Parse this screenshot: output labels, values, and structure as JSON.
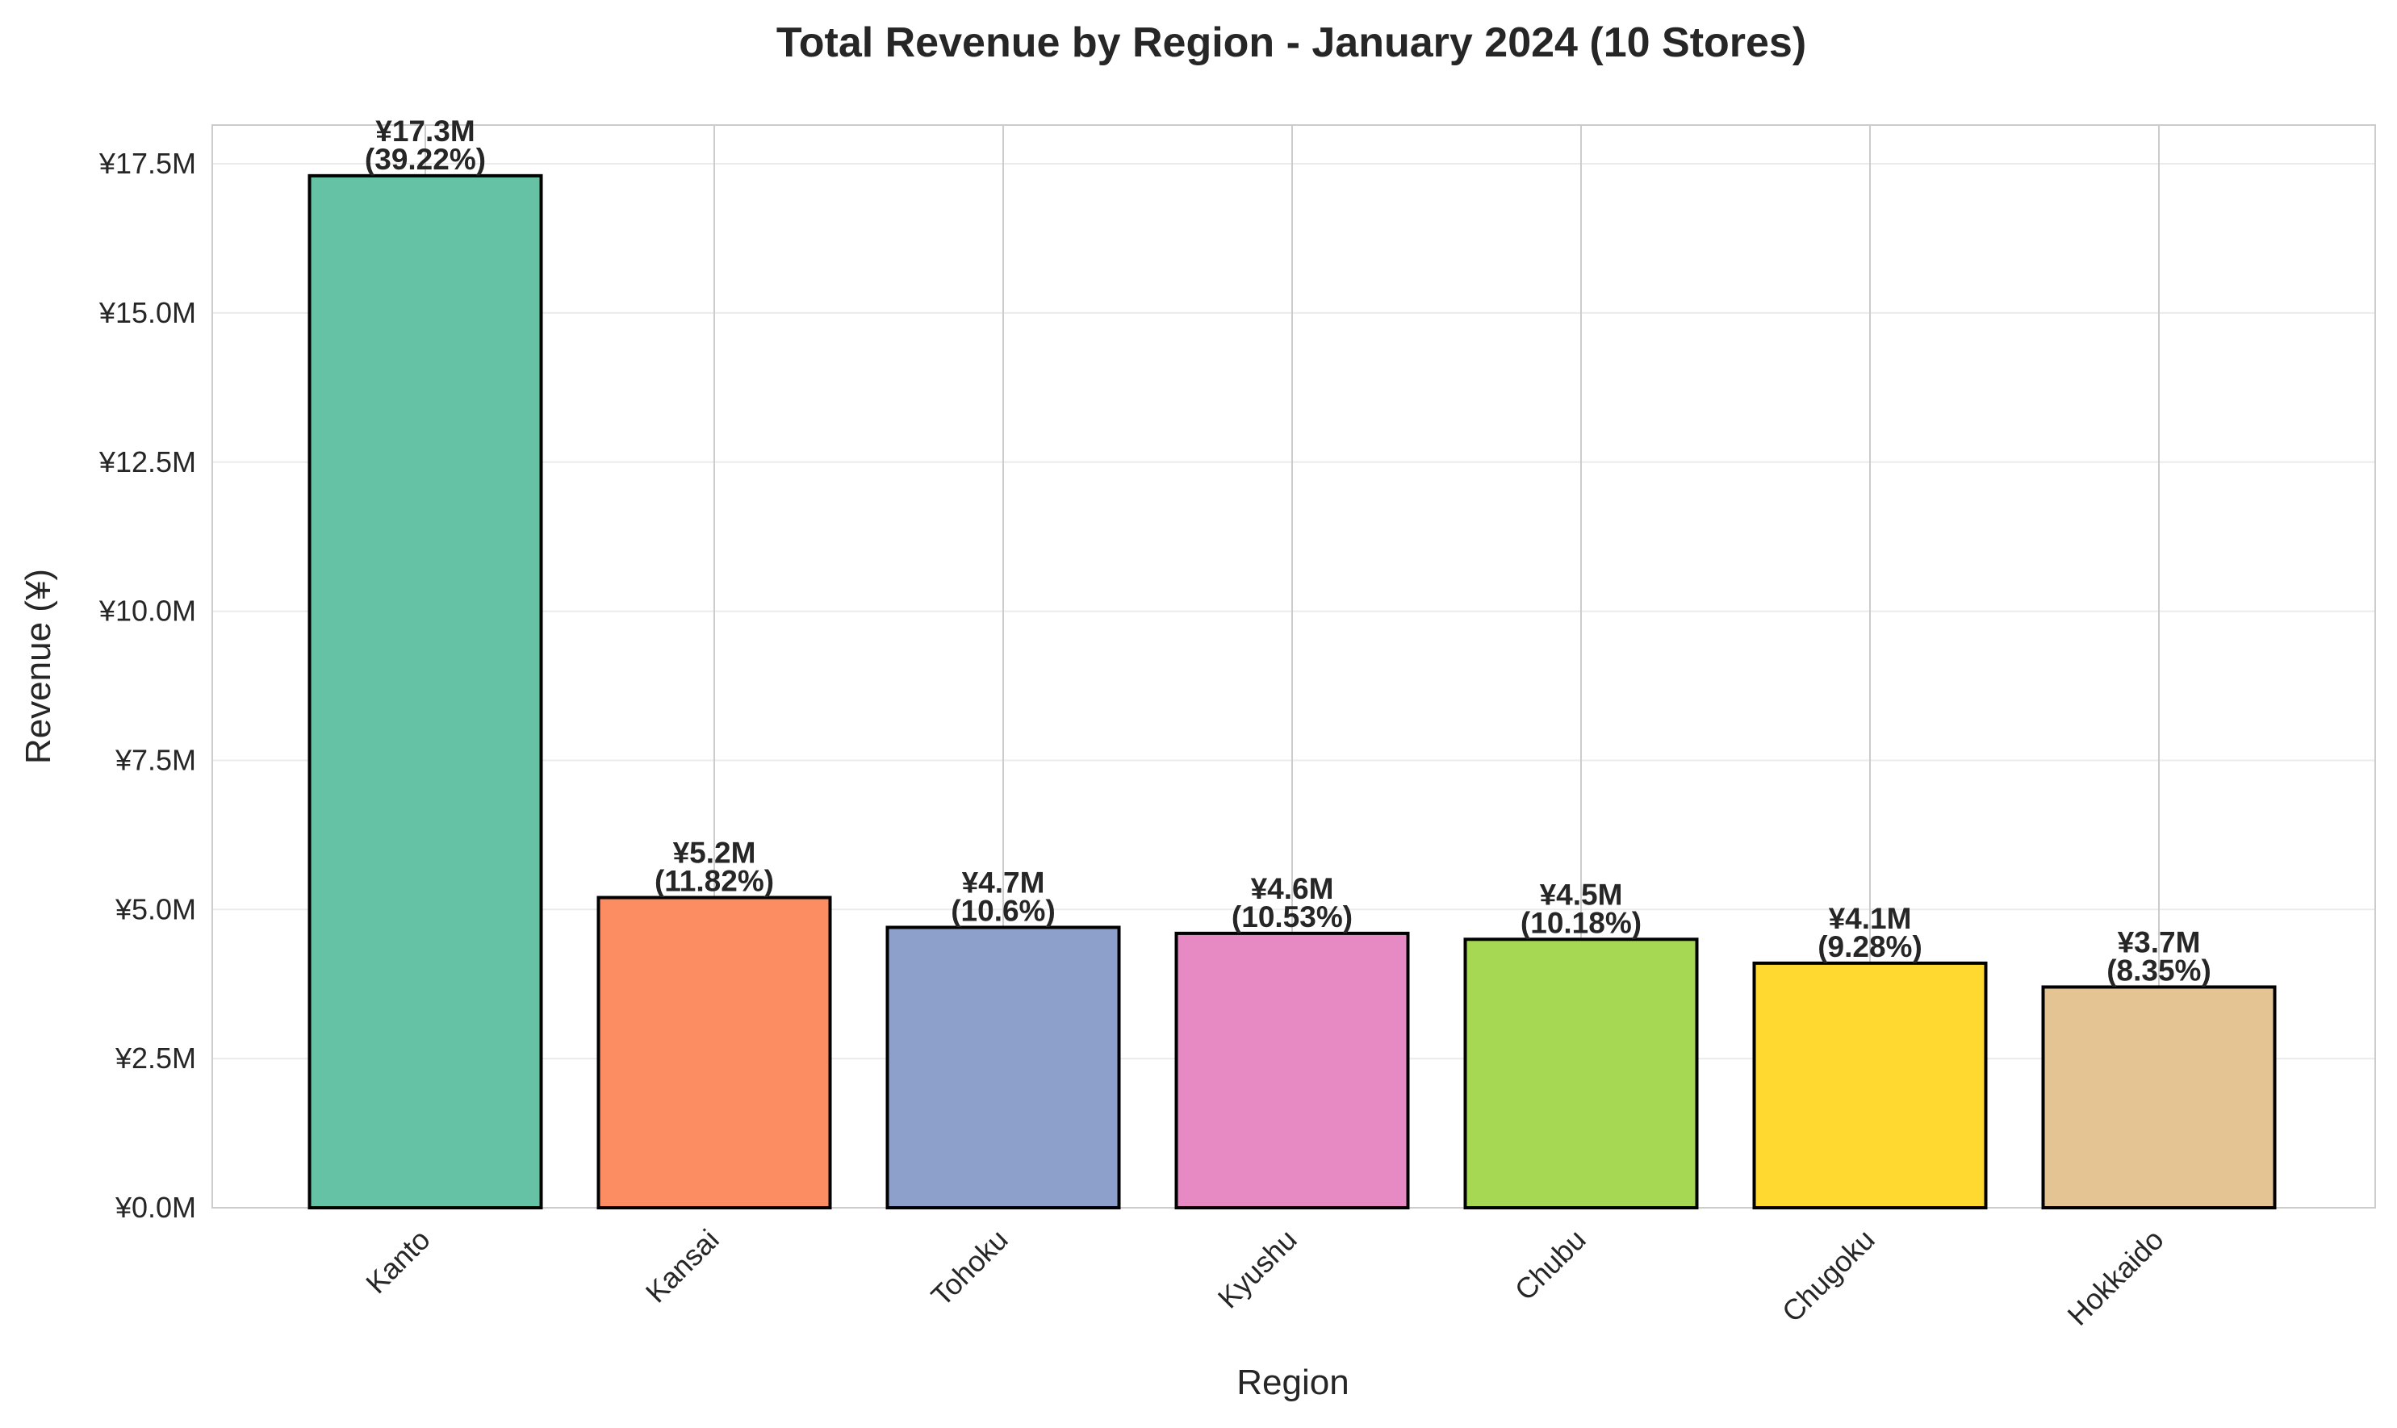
{
  "chart_data": {
    "type": "bar",
    "title": "Total Revenue by Region - January 2024 (10 Stores)",
    "xlabel": "Region",
    "ylabel": "Revenue (¥)",
    "ylim": [
      0,
      18.15
    ],
    "yticks": [
      0,
      2.5,
      5.0,
      7.5,
      10.0,
      12.5,
      15.0,
      17.5
    ],
    "ytick_labels": [
      "¥0.0M",
      "¥2.5M",
      "¥5.0M",
      "¥7.5M",
      "¥10.0M",
      "¥12.5M",
      "¥15.0M",
      "¥17.5M"
    ],
    "categories": [
      "Kanto",
      "Kansai",
      "Tohoku",
      "Kyushu",
      "Chubu",
      "Chugoku",
      "Hokkaido"
    ],
    "values": [
      17.3,
      5.2,
      4.7,
      4.6,
      4.5,
      4.1,
      3.7
    ],
    "value_labels": [
      "¥17.3M",
      "¥5.2M",
      "¥4.7M",
      "¥4.6M",
      "¥4.5M",
      "¥4.1M",
      "¥3.7M"
    ],
    "percent_labels": [
      "(39.22%)",
      "(11.82%)",
      "(10.6%)",
      "(10.53%)",
      "(10.18%)",
      "(9.28%)",
      "(8.35%)"
    ],
    "colors": [
      "#66c2a5",
      "#fc8d62",
      "#8da0cb",
      "#e78ac3",
      "#a6d854",
      "#ffd92f",
      "#e5c494"
    ],
    "grid": true,
    "legend": "none"
  }
}
